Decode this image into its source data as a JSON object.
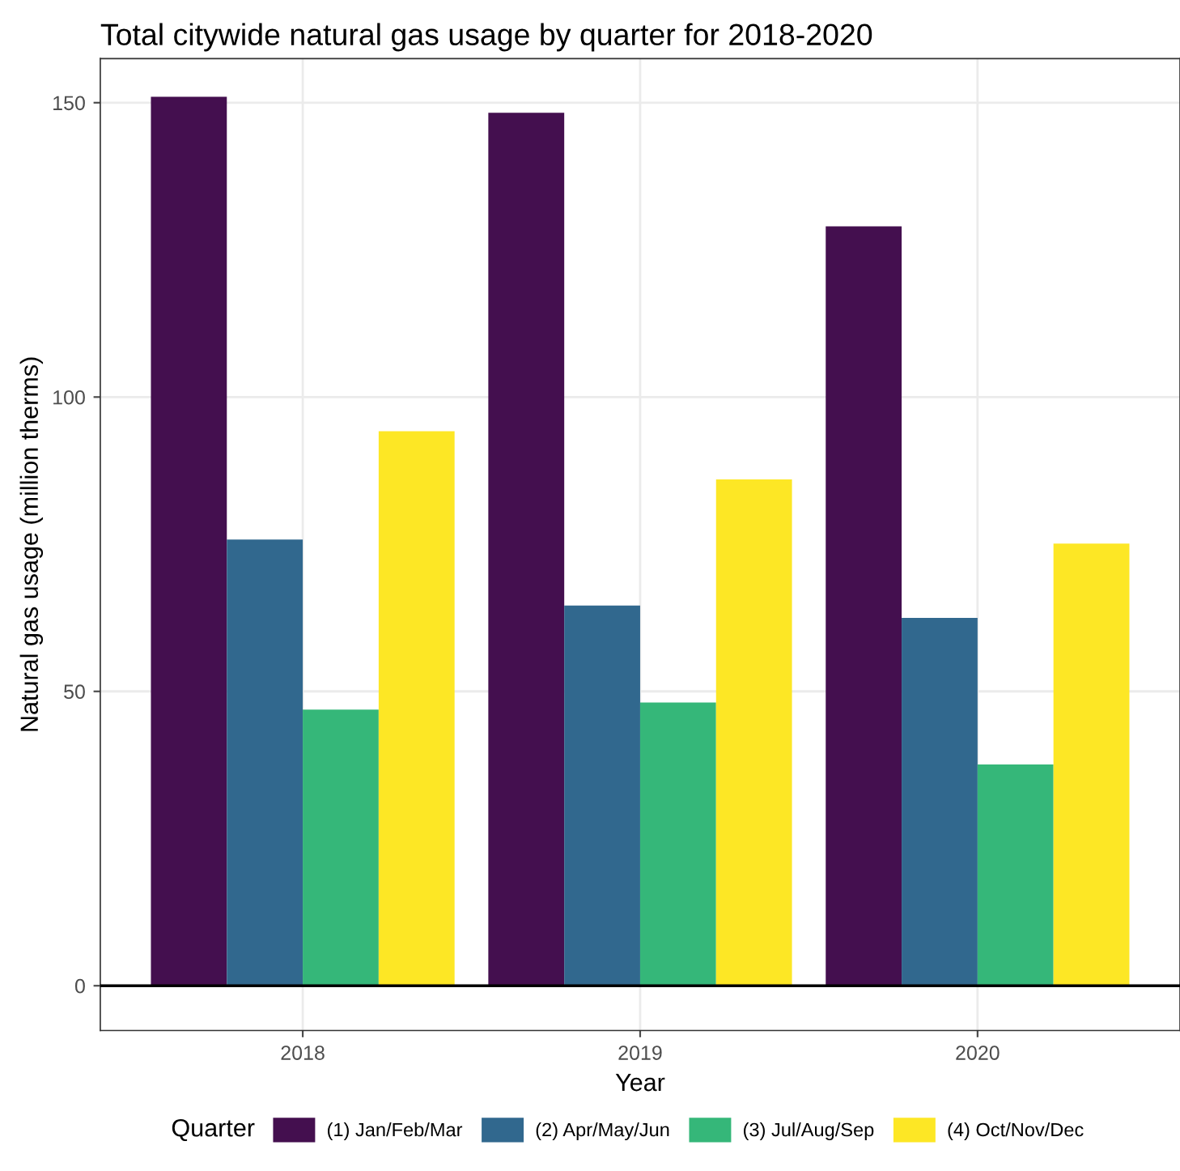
{
  "chart_data": {
    "type": "bar",
    "title": "Total citywide natural gas usage by quarter for 2018-2020",
    "xlabel": "Year",
    "ylabel": "Natural gas usage (million therms)",
    "legend_title": "Quarter",
    "categories": [
      "2018",
      "2019",
      "2020"
    ],
    "series": [
      {
        "name": "(1) Jan/Feb/Mar",
        "color": "#440f4f",
        "values": [
          151.0,
          148.3,
          129.0
        ]
      },
      {
        "name": "(2) Apr/May/Jun",
        "color": "#31688e",
        "values": [
          75.8,
          64.6,
          62.5
        ]
      },
      {
        "name": "(3) Jul/Aug/Sep",
        "color": "#35b779",
        "values": [
          46.9,
          48.1,
          37.6
        ]
      },
      {
        "name": "(4) Oct/Nov/Dec",
        "color": "#fde725",
        "values": [
          94.2,
          86.0,
          75.1
        ]
      }
    ],
    "ylim": [
      -7.6,
      157.5
    ],
    "yticks": [
      0,
      50,
      100,
      150
    ],
    "grid": true,
    "legend": "bottom",
    "ref_lines": [
      {
        "axis": "y",
        "value": 0,
        "color": "#000000"
      }
    ]
  }
}
